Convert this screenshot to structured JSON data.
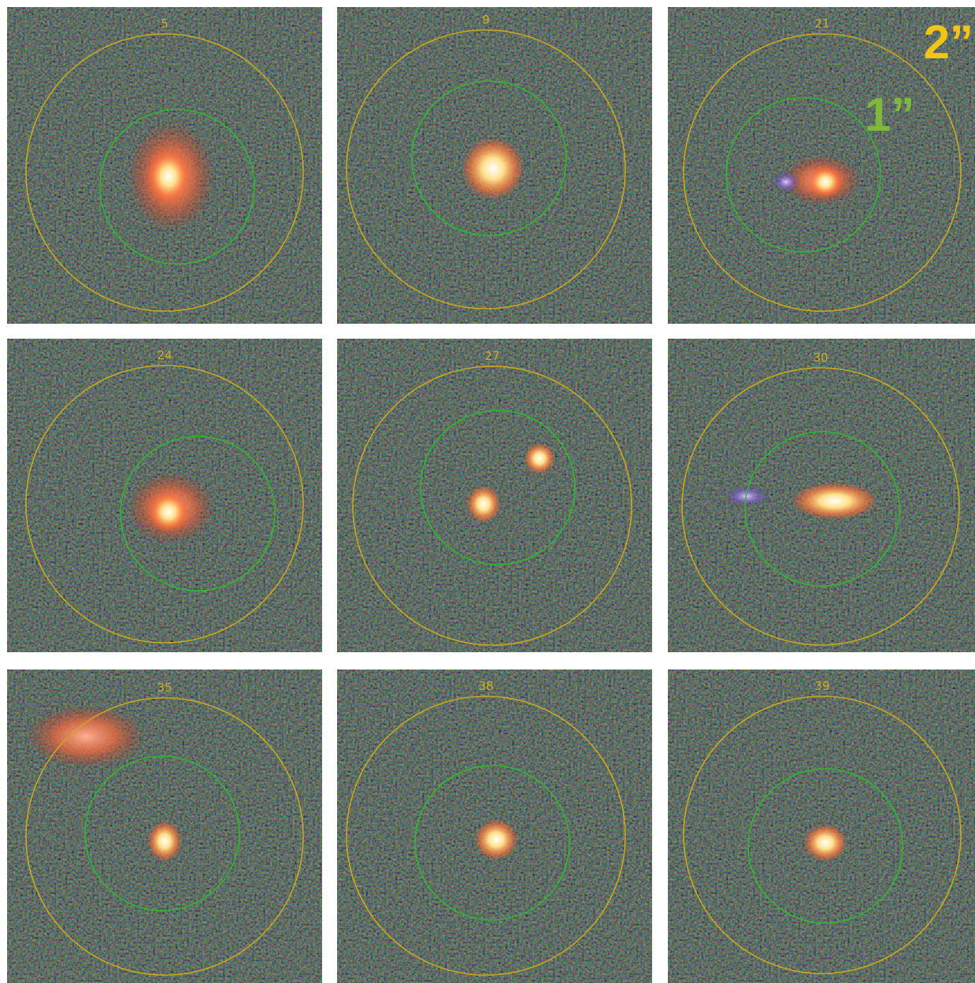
{
  "panels": [
    {
      "label": "5"
    },
    {
      "label": "9"
    },
    {
      "label": "21"
    },
    {
      "label": "24"
    },
    {
      "label": "27"
    },
    {
      "label": "30"
    },
    {
      "label": "35"
    },
    {
      "label": "38"
    },
    {
      "label": "39"
    }
  ],
  "annotations": {
    "outer": "2”",
    "inner": "1”"
  }
}
